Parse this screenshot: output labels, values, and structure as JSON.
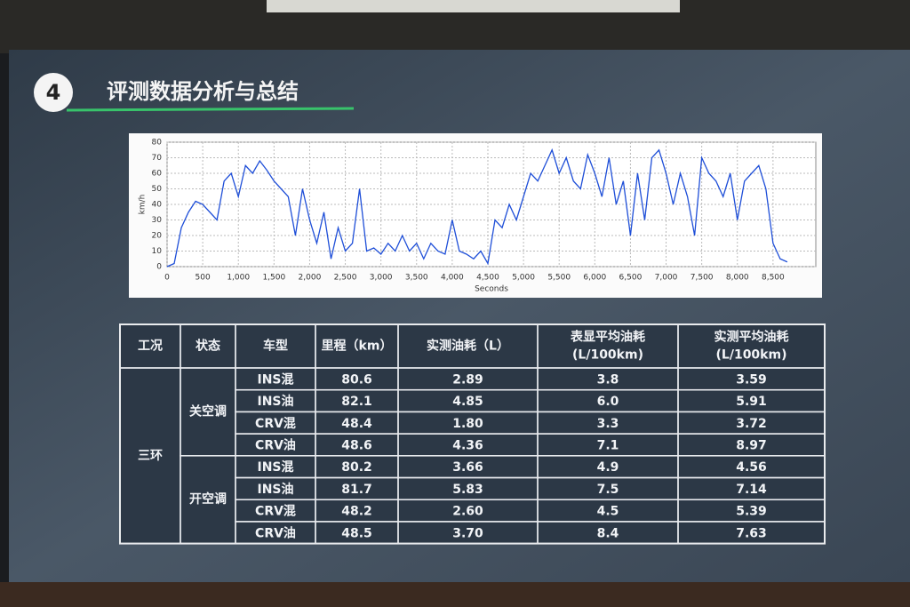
{
  "badge": "4",
  "title": "评测数据分析与总结",
  "chart_data": {
    "type": "line",
    "ylabel": "km/h",
    "xlabel": "Seconds",
    "xlim": [
      0,
      9100
    ],
    "ylim": [
      0,
      80
    ],
    "yticks": [
      0,
      10,
      20,
      30,
      40,
      50,
      60,
      70,
      80
    ],
    "xticks": [
      0,
      500,
      {
        "value": 1000,
        "label": "1,000"
      },
      {
        "value": 1500,
        "label": "1,500"
      },
      {
        "value": 2000,
        "label": "2,000"
      },
      {
        "value": 2500,
        "label": "2,500"
      },
      {
        "value": 3000,
        "label": "3,000"
      },
      {
        "value": 3500,
        "label": "3,500"
      },
      {
        "value": 4000,
        "label": "4,000"
      },
      {
        "value": 4500,
        "label": "4,500"
      },
      {
        "value": 5000,
        "label": "5,000"
      },
      {
        "value": 5500,
        "label": "5,500"
      },
      {
        "value": 6000,
        "label": "6,000"
      },
      {
        "value": 6500,
        "label": "6,500"
      },
      {
        "value": 7000,
        "label": "7,000"
      },
      {
        "value": 7500,
        "label": "7,500"
      },
      {
        "value": 8000,
        "label": "8,000"
      },
      {
        "value": 8500,
        "label": "8,500"
      }
    ],
    "grid": true,
    "x": [
      0,
      100,
      200,
      300,
      400,
      500,
      600,
      700,
      800,
      900,
      1000,
      1100,
      1200,
      1300,
      1400,
      1500,
      1600,
      1700,
      1800,
      1900,
      2000,
      2100,
      2200,
      2300,
      2400,
      2500,
      2600,
      2700,
      2800,
      2900,
      3000,
      3100,
      3200,
      3300,
      3400,
      3500,
      3600,
      3700,
      3800,
      3900,
      4000,
      4100,
      4200,
      4300,
      4400,
      4500,
      4600,
      4700,
      4800,
      4900,
      5000,
      5100,
      5200,
      5300,
      5400,
      5500,
      5600,
      5700,
      5800,
      5900,
      6000,
      6100,
      6200,
      6300,
      6400,
      6500,
      6600,
      6700,
      6800,
      6900,
      7000,
      7100,
      7200,
      7300,
      7400,
      7500,
      7600,
      7700,
      7800,
      7900,
      8000,
      8100,
      8200,
      8300,
      8400,
      8500,
      8600,
      8700
    ],
    "series": [
      {
        "color": "#1f4fd8",
        "values": [
          0,
          2,
          25,
          35,
          42,
          40,
          35,
          30,
          55,
          60,
          45,
          65,
          60,
          68,
          62,
          55,
          50,
          45,
          20,
          50,
          30,
          15,
          35,
          5,
          25,
          10,
          15,
          50,
          10,
          12,
          8,
          15,
          10,
          20,
          10,
          15,
          5,
          15,
          10,
          8,
          30,
          10,
          8,
          5,
          10,
          2,
          30,
          25,
          40,
          30,
          45,
          60,
          55,
          65,
          75,
          60,
          70,
          55,
          50,
          72,
          60,
          45,
          70,
          40,
          55,
          20,
          60,
          30,
          70,
          75,
          60,
          40,
          60,
          45,
          20,
          70,
          60,
          55,
          45,
          60,
          30,
          55,
          60,
          65,
          50,
          15,
          5,
          3
        ]
      }
    ]
  },
  "table": {
    "header": [
      [
        "工况"
      ],
      [
        "状态"
      ],
      [
        "车型"
      ],
      [
        "里程（km）"
      ],
      [
        "实测油耗（L）"
      ],
      [
        "表显平均油耗",
        "(L/100km)"
      ],
      [
        "实测平均油耗",
        "(L/100km)"
      ]
    ],
    "group": "三环",
    "subgroups": [
      {
        "label": "关空调",
        "rows": [
          [
            "INS混",
            "80.6",
            "2.89",
            "3.8",
            "3.59"
          ],
          [
            "INS油",
            "82.1",
            "4.85",
            "6.0",
            "5.91"
          ],
          [
            "CRV混",
            "48.4",
            "1.80",
            "3.3",
            "3.72"
          ],
          [
            "CRV油",
            "48.6",
            "4.36",
            "7.1",
            "8.97"
          ]
        ]
      },
      {
        "label": "开空调",
        "rows": [
          [
            "INS混",
            "80.2",
            "3.66",
            "4.9",
            "4.56"
          ],
          [
            "INS油",
            "81.7",
            "5.83",
            "7.5",
            "7.14"
          ],
          [
            "CRV混",
            "48.2",
            "2.60",
            "4.5",
            "5.39"
          ],
          [
            "CRV油",
            "48.5",
            "3.70",
            "8.4",
            "7.63"
          ]
        ]
      }
    ]
  }
}
